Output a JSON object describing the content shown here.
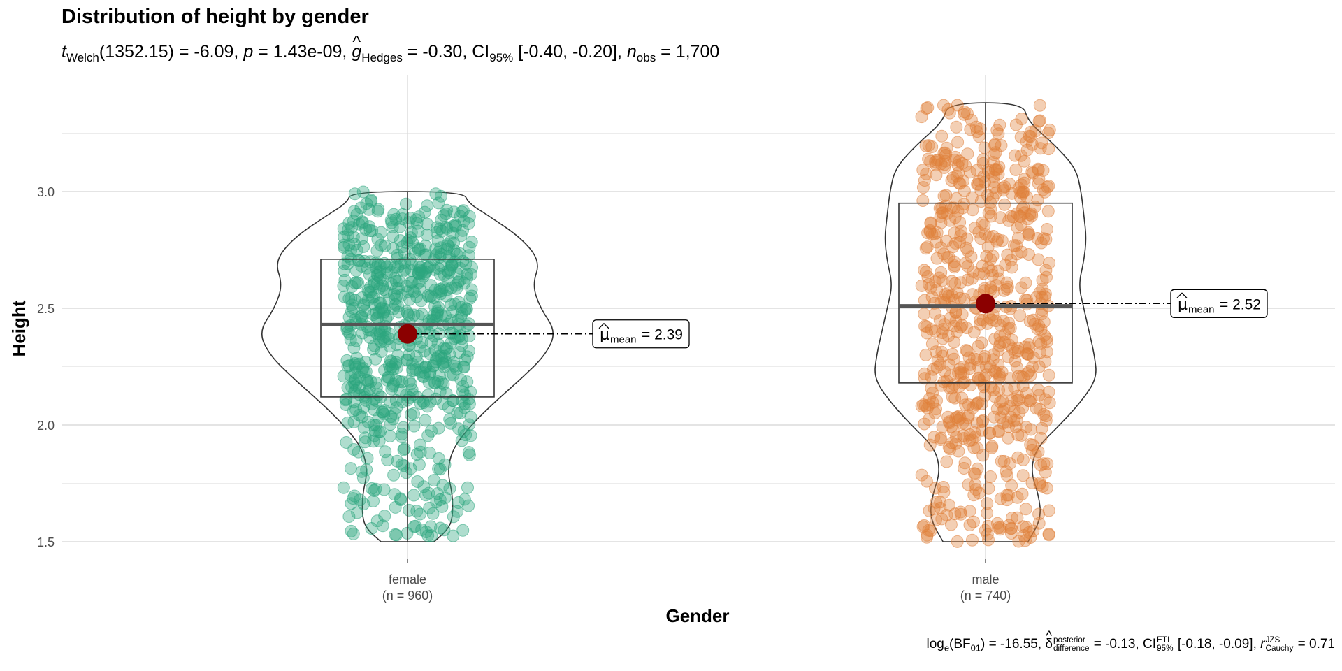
{
  "title": "Distribution of height by gender",
  "subtitle": {
    "t_label": "t",
    "t_sub": "Welch",
    "t_df": "(1352.15)",
    "t_value": "-6.09",
    "p_label": "p",
    "p_value": "1.43e-09",
    "g_label": "g",
    "g_sub": "Hedges",
    "g_value": "-0.30",
    "ci_label": "CI",
    "ci_sub": "95%",
    "ci_value": "[-0.40, -0.20]",
    "n_label": "n",
    "n_sub": "obs",
    "n_value": "1,700"
  },
  "caption": {
    "bf_label": "log",
    "bf_sub": "e",
    "bf_paren": "(BF",
    "bf_sub2": "01",
    "bf_close": ")",
    "bf_value": "-16.55",
    "delta_sup": "posterior",
    "delta_sub": "difference",
    "delta_value": "-0.13",
    "ci_label": "CI",
    "ci_sup": "ETI",
    "ci_sub": "95%",
    "ci_value": "[-0.18, -0.09]",
    "r_label": "r",
    "r_sup": "JZS",
    "r_sub": "Cauchy",
    "r_value": "0.71"
  },
  "chart_data": {
    "type": "violin-box-scatter",
    "title": "Distribution of height by gender",
    "xlabel": "Gender",
    "ylabel": "Height",
    "ylim": [
      1.4,
      3.5
    ],
    "yticks": [
      1.5,
      2.0,
      2.5,
      3.0
    ],
    "ytick_labels": [
      "1.5",
      "2.0",
      "2.5",
      "3.0"
    ],
    "grid": true,
    "legend": "none",
    "groups": [
      {
        "category": "female",
        "n_label": "(n = 960)",
        "n": 960,
        "color": "#2ca57d",
        "min": 1.5,
        "q1": 2.12,
        "median": 2.43,
        "q3": 2.71,
        "max": 3.0,
        "mean": 2.39,
        "mean_label_name": "mean",
        "mean_label_value": "2.39",
        "violin_profile": [
          [
            1.5,
            0.1
          ],
          [
            1.55,
            0.15
          ],
          [
            1.6,
            0.17
          ],
          [
            1.7,
            0.17
          ],
          [
            1.8,
            0.15
          ],
          [
            1.9,
            0.17
          ],
          [
            2.0,
            0.24
          ],
          [
            2.1,
            0.33
          ],
          [
            2.2,
            0.43
          ],
          [
            2.3,
            0.52
          ],
          [
            2.4,
            0.56
          ],
          [
            2.5,
            0.5
          ],
          [
            2.6,
            0.47
          ],
          [
            2.7,
            0.5
          ],
          [
            2.8,
            0.43
          ],
          [
            2.9,
            0.3
          ],
          [
            2.95,
            0.23
          ],
          [
            3.0,
            0.21
          ]
        ]
      },
      {
        "category": "male",
        "n_label": "(n = 740)",
        "n": 740,
        "color": "#e0803b",
        "min": 1.5,
        "q1": 2.18,
        "median": 2.51,
        "q3": 2.95,
        "max": 3.38,
        "mean": 2.52,
        "mean_label_name": "mean",
        "mean_label_value": "2.52",
        "violin_profile": [
          [
            1.5,
            0.16
          ],
          [
            1.6,
            0.21
          ],
          [
            1.7,
            0.2
          ],
          [
            1.8,
            0.17
          ],
          [
            1.9,
            0.19
          ],
          [
            2.0,
            0.28
          ],
          [
            2.1,
            0.36
          ],
          [
            2.2,
            0.42
          ],
          [
            2.3,
            0.41
          ],
          [
            2.4,
            0.39
          ],
          [
            2.5,
            0.37
          ],
          [
            2.6,
            0.35
          ],
          [
            2.7,
            0.37
          ],
          [
            2.8,
            0.38
          ],
          [
            2.9,
            0.37
          ],
          [
            3.0,
            0.36
          ],
          [
            3.1,
            0.34
          ],
          [
            3.2,
            0.26
          ],
          [
            3.3,
            0.16
          ],
          [
            3.38,
            0.14
          ]
        ]
      }
    ]
  }
}
